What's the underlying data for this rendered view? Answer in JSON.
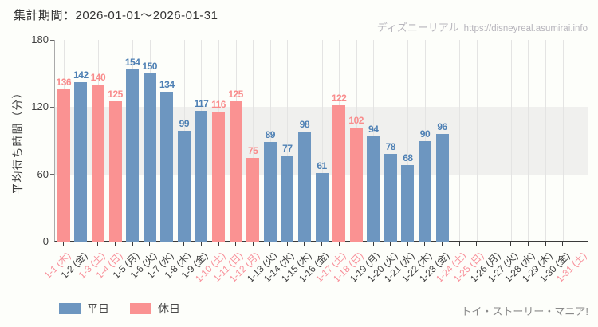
{
  "header": {
    "period_label": "集計期間：2026-01-01～2026-01-31"
  },
  "watermark": {
    "site_name": "ディズニーリアル",
    "url": "https://disneyreal.asumirai.info"
  },
  "footer": {
    "attraction_name": "トイ・ストーリー・マニア!"
  },
  "legend": {
    "items": [
      {
        "label": "平日",
        "type": "weekday"
      },
      {
        "label": "休日",
        "type": "holiday"
      }
    ]
  },
  "colors": {
    "weekday_bar": "#6d96c0",
    "holiday_bar": "#fa9292",
    "weekday_value_label": "#4e80b4",
    "holiday_value_label": "#f98c8c",
    "weekday_tick_label": "#3e3e3e",
    "holiday_tick_label": "#f8909a",
    "band": "#f0f0ee",
    "gridline": "#e4e4e3",
    "axis": "#3a3a3a"
  },
  "chart_data": {
    "type": "bar",
    "title": "",
    "xlabel": "",
    "ylabel": "平均待ち時間（分）",
    "ylim": [
      0,
      180
    ],
    "yticks": [
      0,
      60,
      120,
      180
    ],
    "shaded_band": [
      60,
      120
    ],
    "grid": "vertical",
    "legend_position": "bottom-left",
    "categories": [
      "1-1 (木)",
      "1-2 (金)",
      "1-3 (土)",
      "1-4 (日)",
      "1-5 (月)",
      "1-6 (火)",
      "1-7 (水)",
      "1-8 (木)",
      "1-9 (金)",
      "1-10 (土)",
      "1-11 (日)",
      "1-12 (月)",
      "1-13 (火)",
      "1-14 (水)",
      "1-15 (木)",
      "1-16 (金)",
      "1-17 (土)",
      "1-18 (日)",
      "1-19 (月)",
      "1-20 (火)",
      "1-21 (水)",
      "1-22 (木)",
      "1-23 (金)",
      "1-24 (土)",
      "1-25 (日)",
      "1-26 (月)",
      "1-27 (火)",
      "1-28 (水)",
      "1-29 (木)",
      "1-30 (金)",
      "1-31 (土)"
    ],
    "day_types": [
      "holiday",
      "weekday",
      "holiday",
      "holiday",
      "weekday",
      "weekday",
      "weekday",
      "weekday",
      "weekday",
      "holiday",
      "holiday",
      "holiday",
      "weekday",
      "weekday",
      "weekday",
      "weekday",
      "holiday",
      "holiday",
      "weekday",
      "weekday",
      "weekday",
      "weekday",
      "weekday",
      "holiday",
      "holiday",
      "weekday",
      "weekday",
      "weekday",
      "weekday",
      "weekday",
      "holiday"
    ],
    "values": [
      136,
      142,
      140,
      125,
      154,
      150,
      134,
      99,
      117,
      116,
      125,
      75,
      89,
      77,
      98,
      61,
      122,
      102,
      94,
      78,
      68,
      90,
      96,
      null,
      null,
      null,
      null,
      null,
      null,
      null,
      null
    ]
  }
}
